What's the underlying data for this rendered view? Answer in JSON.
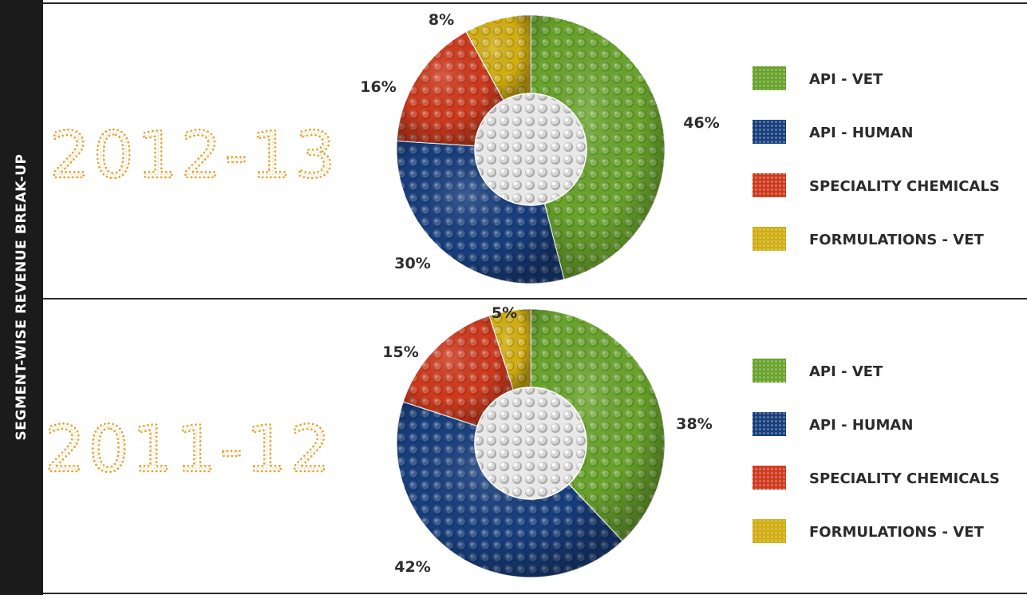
{
  "sidebar": {
    "title": "SEGMENT-WISE REVENUE BREAK-UP"
  },
  "colors": {
    "API - VET": "#6aa72a",
    "API - HUMAN": "#173f80",
    "SPECIALITY CHEMICALS": "#d43a1c",
    "FORMULATIONS - VET": "#d7b20f",
    "center": "#dcdcdc",
    "year_text": "#e3a230"
  },
  "chart_data": [
    {
      "type": "pie",
      "variant": "donut",
      "title": "2012-13",
      "categories": [
        "API - VET",
        "API - HUMAN",
        "SPECIALITY CHEMICALS",
        "FORMULATIONS - VET"
      ],
      "values": [
        46,
        30,
        16,
        8
      ],
      "labels": [
        "46%",
        "30%",
        "16%",
        "8%"
      ],
      "legend_position": "right"
    },
    {
      "type": "pie",
      "variant": "donut",
      "title": "2011-12",
      "categories": [
        "API - VET",
        "API - HUMAN",
        "SPECIALITY CHEMICALS",
        "FORMULATIONS - VET"
      ],
      "values": [
        38,
        42,
        15,
        5
      ],
      "labels": [
        "38%",
        "42%",
        "15%",
        "5%"
      ],
      "legend_position": "right"
    }
  ]
}
